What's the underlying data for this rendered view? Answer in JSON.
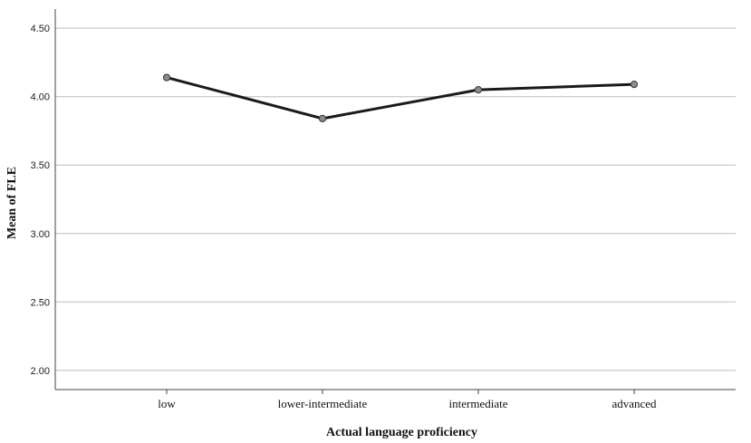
{
  "chart_data": {
    "type": "line",
    "title": "",
    "xlabel": "Actual language proficiency",
    "ylabel": "Mean of FLE",
    "categories": [
      "low",
      "lower-intermediate",
      "intermediate",
      "advanced"
    ],
    "series": [
      {
        "values": [
          4.14,
          3.84,
          4.05,
          4.09
        ]
      }
    ],
    "ylim": [
      1.86,
      4.64
    ],
    "yticks": [
      2.0,
      2.5,
      3.0,
      3.5,
      4.0,
      4.5
    ],
    "ytick_labels": [
      "2.00",
      "2.50",
      "3.00",
      "3.50",
      "4.00",
      "4.50"
    ],
    "grid": true,
    "legend": "none",
    "colors": {
      "line": "#1a1a1a",
      "marker_fill": "#8c8c8c",
      "grid": "#bdbdbd",
      "axis": "#444444"
    }
  }
}
